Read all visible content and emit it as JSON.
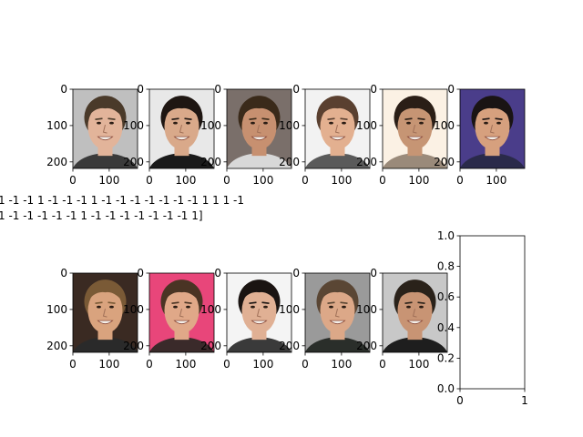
{
  "chart_data": {
    "type": "image-grid",
    "rows": 2,
    "columns": 6,
    "image_axes": {
      "xlim": [
        0,
        178
      ],
      "ylim": [
        218,
        0
      ],
      "xticks": [
        0,
        100
      ],
      "yticks": [
        0,
        100,
        200
      ],
      "x_tick_labels": [
        "0",
        "100"
      ],
      "y_tick_labels": [
        "0",
        "100",
        "200"
      ]
    },
    "faces_row1": [
      {
        "hair": "#4a3a2a",
        "skin": "#e2b49a",
        "bg": "#bfbfbf",
        "shirt": "#3a3a3a"
      },
      {
        "hair": "#1e1612",
        "skin": "#d9a98a",
        "bg": "#e8e8e8",
        "shirt": "#1a1a1a"
      },
      {
        "hair": "#3a2a1a",
        "skin": "#c79070",
        "bg": "#7a6f6a",
        "shirt": "#d8d8d8"
      },
      {
        "hair": "#5a4030",
        "skin": "#e3b090",
        "bg": "#f2f2f2",
        "shirt": "#5a5a5a"
      },
      {
        "hair": "#2a1e16",
        "skin": "#c69574",
        "bg": "#fbf1e4",
        "shirt": "#9a8a7a"
      },
      {
        "hair": "#1a1414",
        "skin": "#d6a07e",
        "bg": "#4a3d8a",
        "shirt": "#2a2a4a"
      }
    ],
    "faces_row2": [
      {
        "hair": "#7a5a36",
        "skin": "#d9a37e",
        "bg": "#3a2a22",
        "shirt": "#2a2a2a"
      },
      {
        "hair": "#4a3424",
        "skin": "#e0a888",
        "bg": "#e8467a",
        "shirt": "#3a2a2a"
      },
      {
        "hair": "#1a1412",
        "skin": "#e0b094",
        "bg": "#f4f4f4",
        "shirt": "#3a3a3a"
      },
      {
        "hair": "#5a4634",
        "skin": "#dca888",
        "bg": "#9a9a9a",
        "shirt": "#2a2e2a"
      },
      {
        "hair": "#2a221a",
        "skin": "#c89474",
        "bg": "#c8c8c8",
        "shirt": "#1e1e1e"
      }
    ],
    "empty_axes": {
      "xlim": [
        0,
        1
      ],
      "ylim": [
        0,
        1
      ],
      "x_tick_labels": [
        "0",
        "1"
      ],
      "y_tick_labels": [
        "0.0",
        "0.2",
        "0.4",
        "0.6",
        "0.8",
        "1.0"
      ]
    },
    "label_text_line1": "1 -1 -1  1 -1 -1 -1  1 -1 -1 -1 -1 -1 -1 -1  1  1  1 -1",
    "label_text_line2": "1 -1 -1 -1 -1 -1  1 -1 -1 -1 -1 -1 -1 -1  1]"
  }
}
